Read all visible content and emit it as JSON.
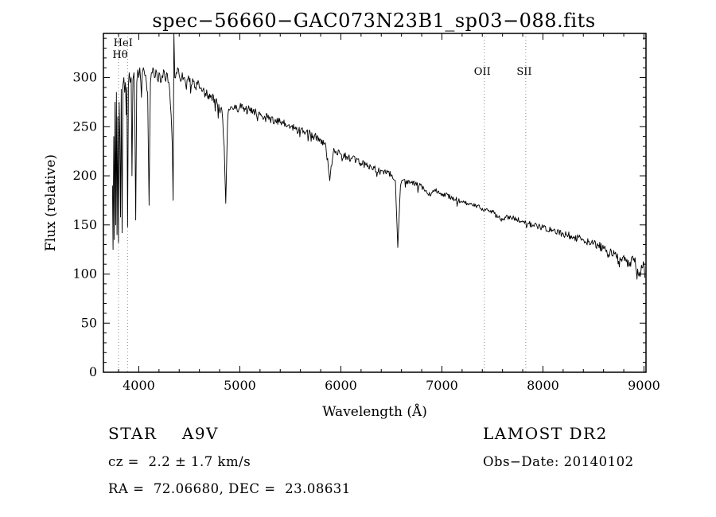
{
  "chart_data": {
    "type": "line",
    "title": "spec−56660−GAC073N23B1_sp03−088.fits",
    "xlabel": "Wavelength (Å)",
    "ylabel": "Flux (relative)",
    "xlim": [
      3650,
      9020
    ],
    "ylim": [
      0,
      345
    ],
    "x_ticks": [
      4000,
      5000,
      6000,
      7000,
      8000,
      9000
    ],
    "y_ticks": [
      0,
      50,
      100,
      150,
      200,
      250,
      300
    ],
    "x_minor_step": 200,
    "y_minor_step": 10,
    "grid": false,
    "legend": "none",
    "line_color": "#000000",
    "marker_line_color": "#888888",
    "background": "#ffffff",
    "markers": [
      {
        "label": "HeI",
        "line_x": 3889,
        "label_cx": 3845,
        "row": 0
      },
      {
        "label": "Hθ",
        "line_x": 3799,
        "label_cx": 3815,
        "row": 1
      },
      {
        "label": "OII",
        "line_x": 7420,
        "label_cx": 7400,
        "row": 2
      },
      {
        "label": "SII",
        "line_x": 7830,
        "label_cx": 7815,
        "row": 2
      }
    ],
    "series": [
      {
        "name": "spectrum",
        "points": [
          [
            3740,
            190
          ],
          [
            3745,
            125
          ],
          [
            3752,
            240
          ],
          [
            3758,
            135
          ],
          [
            3765,
            275
          ],
          [
            3772,
            150
          ],
          [
            3778,
            285
          ],
          [
            3785,
            140
          ],
          [
            3792,
            260
          ],
          [
            3799,
            132
          ],
          [
            3806,
            275
          ],
          [
            3812,
            240
          ],
          [
            3819,
            158
          ],
          [
            3826,
            288
          ],
          [
            3835,
            142
          ],
          [
            3843,
            292
          ],
          [
            3852,
            300
          ],
          [
            3860,
            285
          ],
          [
            3868,
            295
          ],
          [
            3876,
            262
          ],
          [
            3882,
            290
          ],
          [
            3889,
            148
          ],
          [
            3897,
            292
          ],
          [
            3905,
            305
          ],
          [
            3915,
            295
          ],
          [
            3925,
            300
          ],
          [
            3933,
            200
          ],
          [
            3942,
            298
          ],
          [
            3952,
            305
          ],
          [
            3960,
            270
          ],
          [
            3970,
            155
          ],
          [
            3980,
            295
          ],
          [
            3990,
            308
          ],
          [
            4000,
            300
          ],
          [
            4010,
            310
          ],
          [
            4020,
            295
          ],
          [
            4026,
            280
          ],
          [
            4035,
            305
          ],
          [
            4045,
            310
          ],
          [
            4060,
            302
          ],
          [
            4075,
            295
          ],
          [
            4088,
            285
          ],
          [
            4102,
            170
          ],
          [
            4115,
            295
          ],
          [
            4125,
            305
          ],
          [
            4140,
            310
          ],
          [
            4155,
            300
          ],
          [
            4170,
            308
          ],
          [
            4185,
            298
          ],
          [
            4200,
            305
          ],
          [
            4215,
            295
          ],
          [
            4230,
            302
          ],
          [
            4245,
            308
          ],
          [
            4260,
            298
          ],
          [
            4275,
            305
          ],
          [
            4290,
            295
          ],
          [
            4305,
            288
          ],
          [
            4320,
            262
          ],
          [
            4332,
            230
          ],
          [
            4340,
            175
          ],
          [
            4348,
            345
          ],
          [
            4356,
            300
          ],
          [
            4370,
            305
          ],
          [
            4385,
            310
          ],
          [
            4400,
            302
          ],
          [
            4415,
            296
          ],
          [
            4430,
            305
          ],
          [
            4445,
            300
          ],
          [
            4460,
            296
          ],
          [
            4471,
            288
          ],
          [
            4485,
            298
          ],
          [
            4500,
            296
          ],
          [
            4520,
            292
          ],
          [
            4540,
            296
          ],
          [
            4560,
            290
          ],
          [
            4580,
            293
          ],
          [
            4600,
            289
          ],
          [
            4630,
            286
          ],
          [
            4660,
            284
          ],
          [
            4690,
            282
          ],
          [
            4720,
            280
          ],
          [
            4750,
            278
          ],
          [
            4780,
            272
          ],
          [
            4810,
            268
          ],
          [
            4830,
            258
          ],
          [
            4845,
            230
          ],
          [
            4861,
            172
          ],
          [
            4878,
            255
          ],
          [
            4890,
            268
          ],
          [
            4910,
            270
          ],
          [
            4930,
            268
          ],
          [
            4950,
            272
          ],
          [
            4970,
            269
          ],
          [
            5000,
            270
          ],
          [
            5100,
            266
          ],
          [
            5200,
            262
          ],
          [
            5300,
            258
          ],
          [
            5400,
            254
          ],
          [
            5500,
            250
          ],
          [
            5600,
            246
          ],
          [
            5700,
            242
          ],
          [
            5800,
            237
          ],
          [
            5850,
            232
          ],
          [
            5890,
            195
          ],
          [
            5930,
            228
          ],
          [
            6000,
            222
          ],
          [
            6100,
            218
          ],
          [
            6200,
            213
          ],
          [
            6300,
            209
          ],
          [
            6400,
            205
          ],
          [
            6500,
            201
          ],
          [
            6540,
            195
          ],
          [
            6563,
            127
          ],
          [
            6590,
            190
          ],
          [
            6620,
            196
          ],
          [
            6700,
            193
          ],
          [
            6800,
            189
          ],
          [
            6870,
            180
          ],
          [
            6930,
            186
          ],
          [
            7000,
            182
          ],
          [
            7100,
            178
          ],
          [
            7200,
            173
          ],
          [
            7300,
            170
          ],
          [
            7400,
            167
          ],
          [
            7500,
            163
          ],
          [
            7600,
            155
          ],
          [
            7650,
            158
          ],
          [
            7700,
            157
          ],
          [
            7800,
            153
          ],
          [
            7900,
            150
          ],
          [
            8000,
            147
          ],
          [
            8100,
            144
          ],
          [
            8200,
            141
          ],
          [
            8300,
            138
          ],
          [
            8400,
            135
          ],
          [
            8500,
            131
          ],
          [
            8600,
            126
          ],
          [
            8650,
            120
          ],
          [
            8700,
            124
          ],
          [
            8750,
            113
          ],
          [
            8800,
            119
          ],
          [
            8850,
            108
          ],
          [
            8900,
            116
          ],
          [
            8950,
            98
          ],
          [
            9000,
            110
          ],
          [
            9010,
            96
          ]
        ]
      }
    ],
    "noise": {
      "seed": 42,
      "step": 6,
      "amplitude": [
        [
          3740,
          5
        ],
        [
          4000,
          6
        ],
        [
          4500,
          5.5
        ],
        [
          5000,
          5
        ],
        [
          5500,
          4.5
        ],
        [
          6000,
          4
        ],
        [
          6500,
          3
        ],
        [
          7000,
          2.5
        ],
        [
          7500,
          2.5
        ],
        [
          8000,
          3
        ],
        [
          8500,
          4.5
        ],
        [
          9010,
          5.5
        ]
      ],
      "spike_prob": 0.05,
      "spike_scale": 2.5
    }
  },
  "annotations": {
    "star_class": "STAR    A9V",
    "survey": "LAMOST DR2",
    "cz": "cz =  2.2 ± 1.7 km/s",
    "obs_date": "Obs−Date: 20140102",
    "ra_dec": "RA =  72.06680, DEC =  23.08631"
  }
}
